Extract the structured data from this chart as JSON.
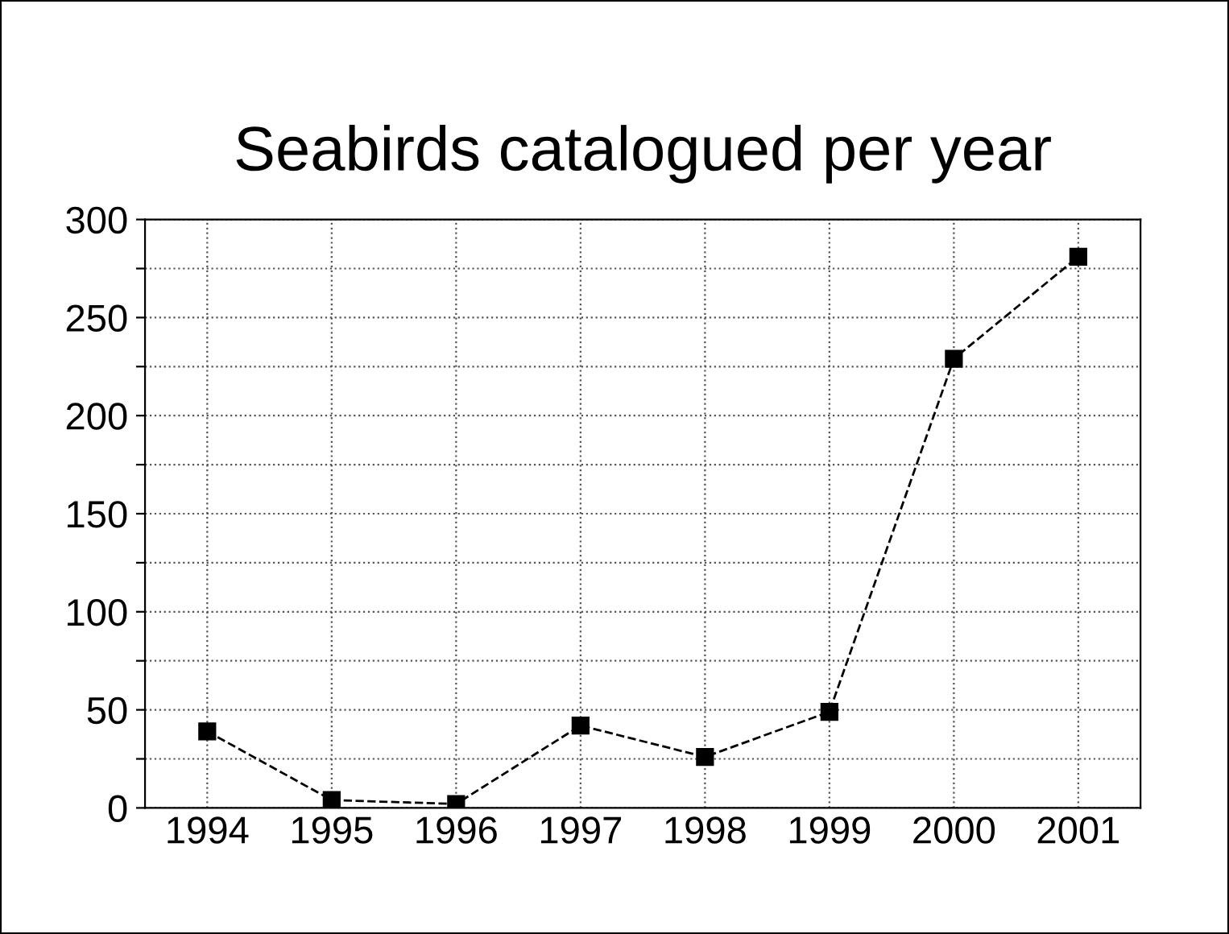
{
  "chart_data": {
    "type": "line",
    "title": "Seabirds catalogued per year",
    "categories": [
      "1994",
      "1995",
      "1996",
      "1997",
      "1998",
      "1999",
      "2000",
      "2001"
    ],
    "series": [
      {
        "color": "#000000",
        "values": [
          39,
          4,
          2,
          42,
          26,
          49,
          229,
          281
        ]
      }
    ],
    "ylim": [
      0,
      300
    ],
    "yticks": [
      0,
      {
        "value": 25,
        "label": null
      },
      50,
      {
        "value": 75,
        "label": null
      },
      100,
      {
        "value": 125,
        "label": null
      },
      150,
      {
        "value": 175,
        "label": null
      },
      200,
      {
        "value": 225,
        "label": null
      },
      250,
      {
        "value": 275,
        "label": null
      },
      300
    ],
    "grid": true,
    "marker": "square",
    "line_style": "dashed",
    "legend": false
  }
}
